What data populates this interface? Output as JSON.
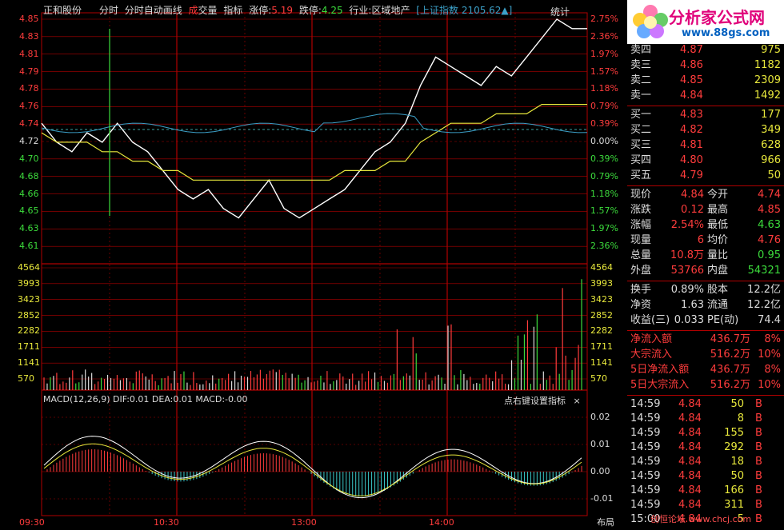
{
  "header": {
    "stock_name": "正和股份",
    "mode_label": "分时",
    "auto_draw_label": "分时自动画线",
    "volume_label_a": "成",
    "volume_label_b": "交量",
    "indicator_label": "指标",
    "limit_up_label": "涨停:",
    "limit_up_value": "5.19",
    "limit_down_label": "跌停:",
    "limit_down_value": "4.25",
    "industry_label": "行业:区域地产",
    "index_label": "[上证指数",
    "index_value": "2105.62▲]",
    "stats_tab": "统计"
  },
  "logo": {
    "title": "分析家公式网",
    "url": "www.88gs.com"
  },
  "price_axis": {
    "left_labels": [
      "4.85",
      "4.83",
      "4.81",
      "4.79",
      "4.78",
      "4.76",
      "4.74",
      "4.72",
      "4.70",
      "4.68",
      "4.66",
      "4.65",
      "4.63",
      "4.61"
    ],
    "right_labels": [
      "2.75%",
      "2.36%",
      "1.97%",
      "1.57%",
      "1.18%",
      "0.79%",
      "0.39%",
      "0.00%",
      "0.39%",
      "0.79%",
      "1.18%",
      "1.57%",
      "1.97%",
      "2.36%"
    ]
  },
  "volume_axis": {
    "labels": [
      "4564",
      "3993",
      "3423",
      "2852",
      "2282",
      "1711",
      "1141",
      "570"
    ]
  },
  "macd": {
    "header": "MACD(12,26,9)  DIF:0.01  DEA:0.01  MACD:-0.00",
    "hint": "点右键设置指标",
    "close_glyph": "×",
    "axis_labels": [
      "0.02",
      "0.01",
      "0.00",
      "-0.01"
    ]
  },
  "time_axis": {
    "labels": [
      "09:30",
      "10:30",
      "13:00",
      "14:00"
    ],
    "layout_button": "布局"
  },
  "order_book": {
    "sell": [
      {
        "label": "卖四",
        "price": "4.87",
        "qty": "975"
      },
      {
        "label": "卖三",
        "price": "4.86",
        "qty": "1182"
      },
      {
        "label": "卖二",
        "price": "4.85",
        "qty": "2309"
      },
      {
        "label": "卖一",
        "price": "4.84",
        "qty": "1492"
      }
    ],
    "buy": [
      {
        "label": "买一",
        "price": "4.83",
        "qty": "177"
      },
      {
        "label": "买二",
        "price": "4.82",
        "qty": "349"
      },
      {
        "label": "买三",
        "price": "4.81",
        "qty": "628"
      },
      {
        "label": "买四",
        "price": "4.80",
        "qty": "966"
      },
      {
        "label": "买五",
        "price": "4.79",
        "qty": "50"
      }
    ]
  },
  "quote": {
    "rows": [
      {
        "l1": "现价",
        "v1": "4.84",
        "l2": "今开",
        "v2": "4.74"
      },
      {
        "l1": "涨跌",
        "v1": "0.12",
        "l2": "最高",
        "v2": "4.85"
      },
      {
        "l1": "涨幅",
        "v1": "2.54%",
        "l2": "最低",
        "v2": "4.63"
      },
      {
        "l1": "现量",
        "v1": "6",
        "l2": "均价",
        "v2": "4.76"
      },
      {
        "l1": "总量",
        "v1": "10.8万",
        "l2": "量比",
        "v2": "0.95"
      },
      {
        "l1": "外盘",
        "v1": "53766",
        "l2": "内盘",
        "v2": "54321"
      }
    ]
  },
  "fundamentals": {
    "rows": [
      {
        "l1": "换手",
        "v1": "0.89%",
        "l2": "股本",
        "v2": "12.2亿"
      },
      {
        "l1": "净资",
        "v1": "1.63",
        "l2": "流通",
        "v2": "12.2亿"
      },
      {
        "l1": "收益(三)",
        "v1": "0.033",
        "l2": "PE(动)",
        "v2": "74.4"
      }
    ]
  },
  "money_flow": {
    "rows": [
      {
        "label": "净流入额",
        "value": "436.7万",
        "pct": "8%"
      },
      {
        "label": "大宗流入",
        "value": "516.2万",
        "pct": "10%"
      },
      {
        "label": "5日净流入额",
        "value": "436.7万",
        "pct": "8%"
      },
      {
        "label": "5日大宗流入",
        "value": "516.2万",
        "pct": "10%"
      }
    ]
  },
  "ticks": [
    {
      "time": "14:59",
      "price": "4.84",
      "qty": "50",
      "side": "B"
    },
    {
      "time": "14:59",
      "price": "4.84",
      "qty": "8",
      "side": "B"
    },
    {
      "time": "14:59",
      "price": "4.84",
      "qty": "155",
      "side": "B"
    },
    {
      "time": "14:59",
      "price": "4.84",
      "qty": "292",
      "side": "B"
    },
    {
      "time": "14:59",
      "price": "4.84",
      "qty": "18",
      "side": "B"
    },
    {
      "time": "14:59",
      "price": "4.84",
      "qty": "50",
      "side": "B"
    },
    {
      "time": "14:59",
      "price": "4.84",
      "qty": "166",
      "side": "B"
    },
    {
      "time": "14:59",
      "price": "4.84",
      "qty": "311",
      "side": "B"
    },
    {
      "time": "15:00",
      "price": "4.84",
      "qty": "5",
      "side": "B"
    }
  ],
  "watermark": "创恒论坛 www.chcj.com",
  "colors": {
    "up": "#ff3c3c",
    "down": "#3cdc3c",
    "grid": "#b00000",
    "price_line": "#ffffff",
    "avg_line": "#e8e83c",
    "index_line": "#3ca0c8"
  },
  "chart_data": {
    "type": "line",
    "title": "",
    "x_label": "",
    "y_label": "",
    "ylim": [
      4.61,
      4.85
    ],
    "series": [
      {
        "values": [
          4.74,
          4.72,
          4.71,
          4.73,
          4.72,
          4.74,
          4.72,
          4.71,
          4.69,
          4.67,
          4.66,
          4.67,
          4.65,
          4.64,
          4.66,
          4.68,
          4.65,
          4.64,
          4.65,
          4.66,
          4.67,
          4.69,
          4.71,
          4.72,
          4.74,
          4.78,
          4.81,
          4.8,
          4.79,
          4.78,
          4.8,
          4.79,
          4.81,
          4.83,
          4.85,
          4.84,
          4.84
        ]
      },
      {
        "values": [
          4.73,
          4.72,
          4.72,
          4.72,
          4.71,
          4.71,
          4.7,
          4.7,
          4.69,
          4.69,
          4.68,
          4.68,
          4.68,
          4.68,
          4.68,
          4.68,
          4.68,
          4.68,
          4.68,
          4.68,
          4.69,
          4.69,
          4.69,
          4.7,
          4.7,
          4.72,
          4.73,
          4.74,
          4.74,
          4.74,
          4.75,
          4.75,
          4.75,
          4.76,
          4.76,
          4.76,
          4.76
        ]
      }
    ]
  }
}
